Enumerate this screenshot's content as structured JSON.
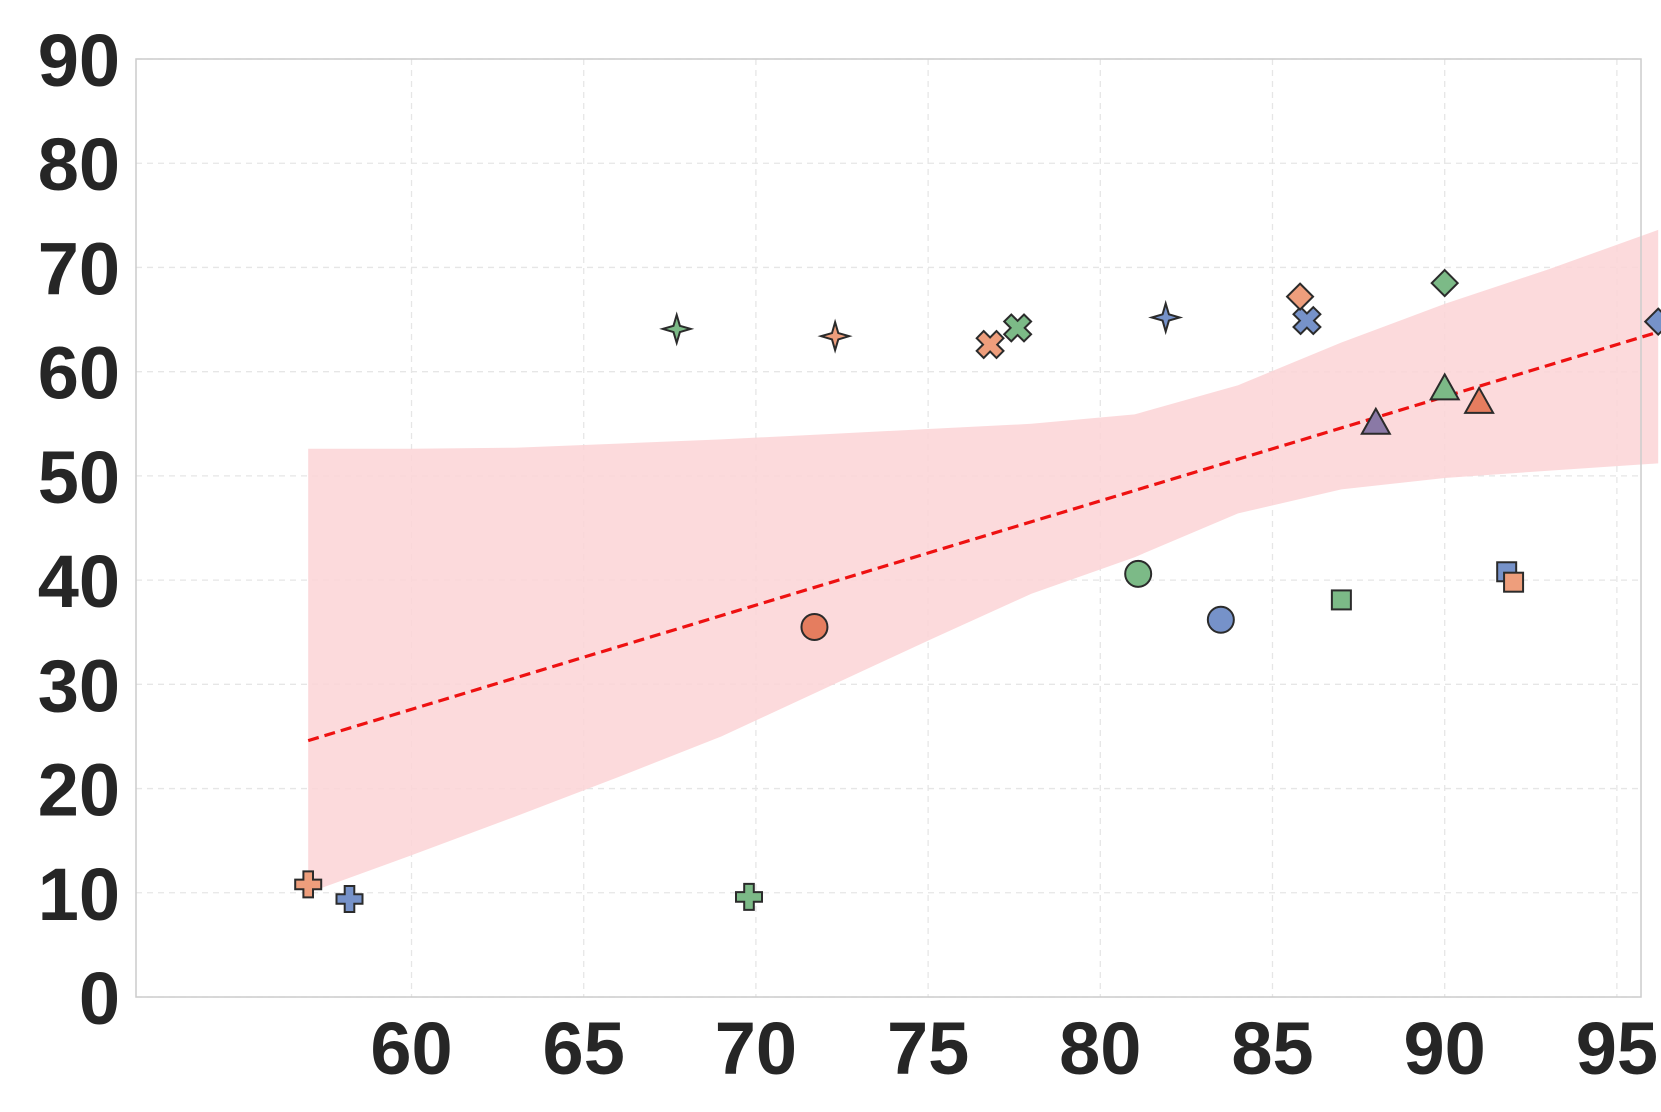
{
  "chart_data": {
    "type": "scatter",
    "title": "",
    "xlabel": "",
    "ylabel": "",
    "xlim": [
      52,
      95.7
    ],
    "ylim": [
      0,
      90
    ],
    "xticks": [
      "60",
      "65",
      "70",
      "75",
      "80",
      "85",
      "90",
      "95"
    ],
    "yticks": [
      "0",
      "10",
      "20",
      "30",
      "40",
      "50",
      "60",
      "70",
      "80",
      "90"
    ],
    "grid": true,
    "legend": "none",
    "colors": {
      "blue": "#7692c9",
      "orange": "#ee9e7c",
      "red": "#e57d5f",
      "green": "#7cba87",
      "purple": "#8a79a6",
      "trend": "#ee1111",
      "band": "#fcd4d6",
      "edge": "#2b2b2b"
    },
    "points": [
      {
        "x": 57.0,
        "y": 10.8,
        "marker": "plus",
        "color": "orange"
      },
      {
        "x": 58.2,
        "y": 9.4,
        "marker": "plus",
        "color": "blue"
      },
      {
        "x": 69.8,
        "y": 9.6,
        "marker": "plus",
        "color": "green"
      },
      {
        "x": 67.7,
        "y": 64.1,
        "marker": "star4",
        "color": "green"
      },
      {
        "x": 72.3,
        "y": 63.4,
        "marker": "star4",
        "color": "orange"
      },
      {
        "x": 81.9,
        "y": 65.2,
        "marker": "star4",
        "color": "blue"
      },
      {
        "x": 76.8,
        "y": 62.6,
        "marker": "x",
        "color": "orange"
      },
      {
        "x": 77.6,
        "y": 64.2,
        "marker": "x",
        "color": "green"
      },
      {
        "x": 86.0,
        "y": 64.9,
        "marker": "x",
        "color": "blue"
      },
      {
        "x": 85.8,
        "y": 67.2,
        "marker": "diamond",
        "color": "orange"
      },
      {
        "x": 90.0,
        "y": 68.5,
        "marker": "diamond",
        "color": "green"
      },
      {
        "x": 96.2,
        "y": 64.8,
        "marker": "diamond",
        "color": "blue"
      },
      {
        "x": 71.7,
        "y": 35.5,
        "marker": "circle",
        "color": "red"
      },
      {
        "x": 81.1,
        "y": 40.6,
        "marker": "circle",
        "color": "green"
      },
      {
        "x": 83.5,
        "y": 36.2,
        "marker": "circle",
        "color": "blue"
      },
      {
        "x": 87.0,
        "y": 38.1,
        "marker": "square",
        "color": "green"
      },
      {
        "x": 91.8,
        "y": 40.8,
        "marker": "square",
        "color": "blue"
      },
      {
        "x": 92.0,
        "y": 39.8,
        "marker": "square",
        "color": "orange"
      },
      {
        "x": 88.0,
        "y": 55.0,
        "marker": "triangle",
        "color": "purple"
      },
      {
        "x": 90.0,
        "y": 58.3,
        "marker": "triangle",
        "color": "green"
      },
      {
        "x": 91.0,
        "y": 57.0,
        "marker": "triangle",
        "color": "red"
      }
    ],
    "trend_line": {
      "x": [
        57.0,
        96.2
      ],
      "y": [
        24.6,
        63.8
      ]
    },
    "confidence_band": {
      "x": [
        57.0,
        60,
        63,
        66,
        69,
        72,
        75,
        78,
        81,
        84,
        87,
        90,
        93,
        96.2
      ],
      "upper": [
        52.6,
        52.6,
        52.7,
        53.1,
        53.5,
        54.0,
        54.5,
        55.0,
        55.9,
        58.7,
        62.8,
        66.5,
        69.8,
        73.6
      ],
      "lower": [
        10.0,
        13.6,
        17.3,
        21.1,
        25.0,
        29.6,
        34.2,
        38.7,
        42.2,
        46.4,
        48.7,
        49.8,
        50.5,
        51.2
      ]
    }
  }
}
